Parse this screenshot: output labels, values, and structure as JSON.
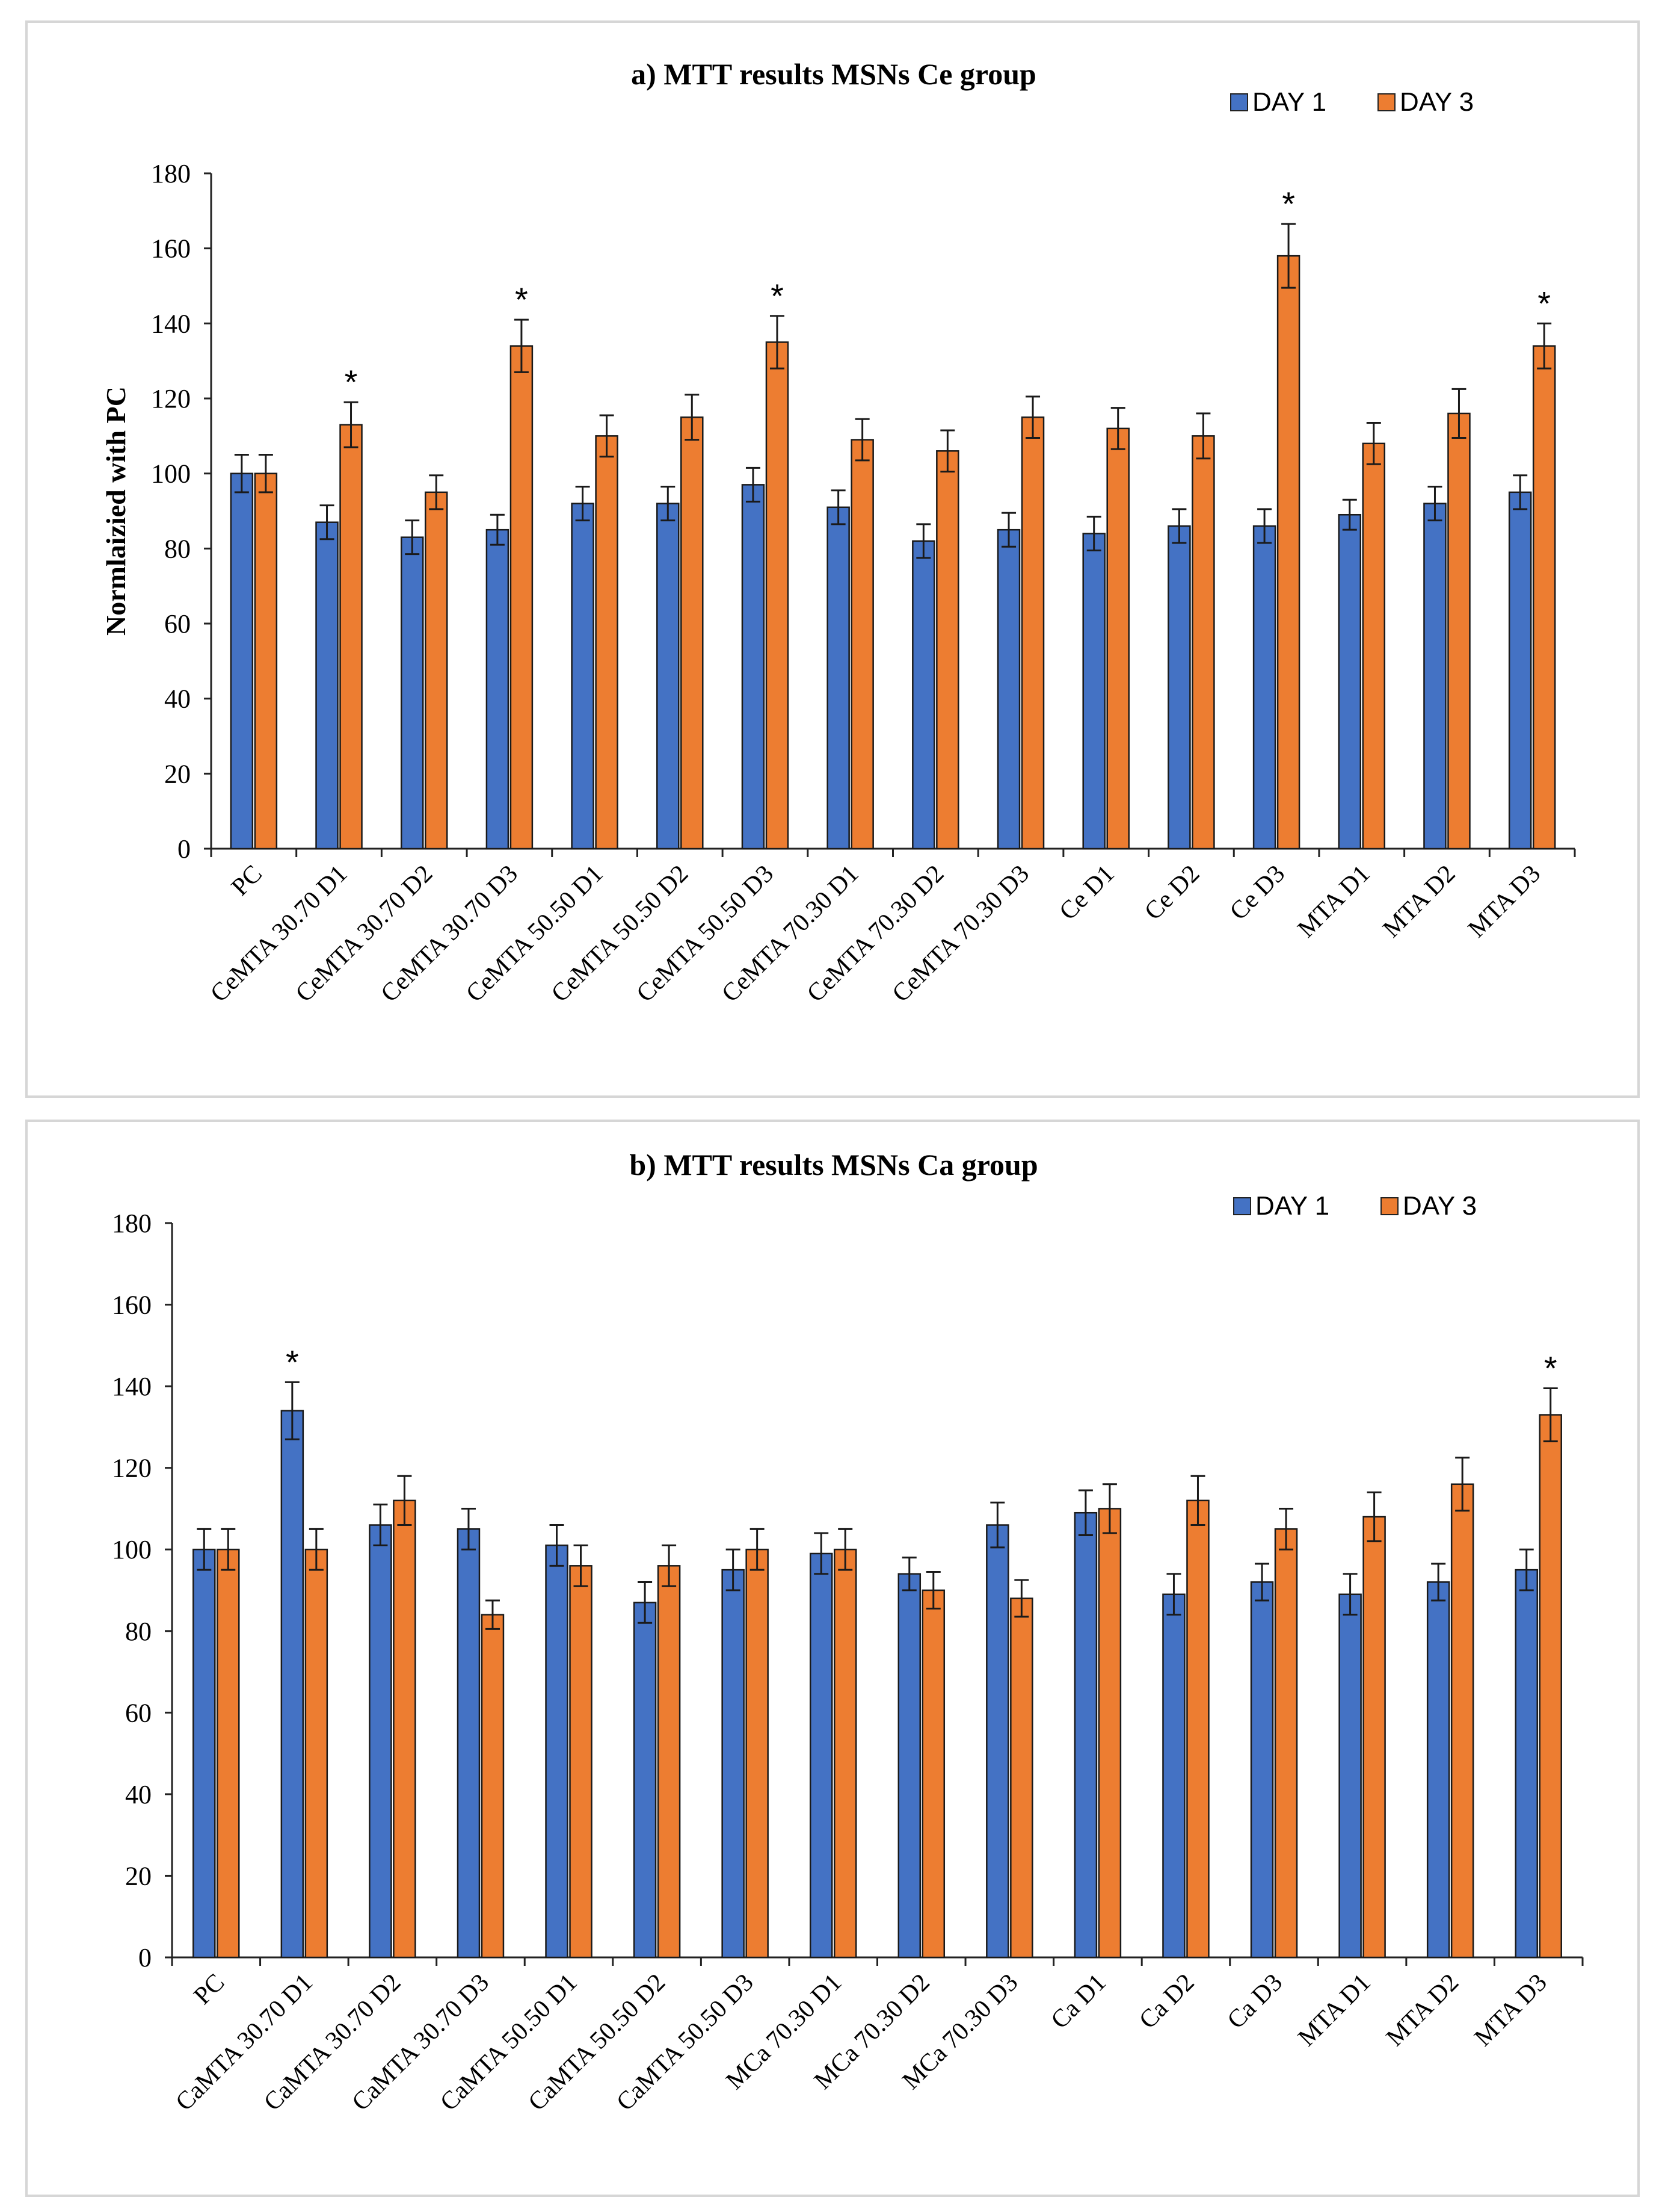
{
  "chart_data": [
    {
      "type": "bar",
      "title": "a) MTT results MSNs Ce group",
      "xlabel": "",
      "ylabel": "Normlaizied with PC",
      "ylim": [
        0,
        180
      ],
      "yticks": [
        "0",
        "20",
        "40",
        "60",
        "80",
        "100",
        "120",
        "140",
        "160",
        "180"
      ],
      "legend_position": "top-right",
      "categories": [
        "PC",
        "CeMTA 30.70 D1",
        "CeMTA 30.70 D2",
        "CeMTA 30.70 D3",
        "CeMTA 50.50 D1",
        "CeMTA 50.50 D2",
        "CeMTA 50.50 D3",
        "CeMTA 70.30 D1",
        "CeMTA 70.30 D2",
        "CeMTA 70.30 D3",
        "Ce D1",
        "Ce D2",
        "Ce D3",
        "MTA D1",
        "MTA D2",
        "MTA D3"
      ],
      "series": [
        {
          "name": "DAY 1",
          "color": "#4472C4",
          "values": [
            100,
            87,
            83,
            85,
            92,
            92,
            97,
            91,
            82,
            85,
            84,
            86,
            86,
            89,
            92,
            95
          ],
          "errors": [
            5,
            4.5,
            4.5,
            4,
            4.5,
            4.5,
            4.5,
            4.5,
            4.5,
            4.5,
            4.5,
            4.5,
            4.5,
            4,
            4.5,
            4.5
          ]
        },
        {
          "name": "DAY 3",
          "color": "#ED7D31",
          "values": [
            100,
            113,
            95,
            134,
            110,
            115,
            135,
            109,
            106,
            115,
            112,
            110,
            158,
            108,
            116,
            134
          ],
          "errors": [
            5,
            6,
            4.5,
            7,
            5.5,
            6,
            7,
            5.5,
            5.5,
            5.5,
            5.5,
            6,
            8.5,
            5.5,
            6.5,
            6
          ]
        }
      ],
      "annotations": [
        {
          "text": "*",
          "category": "CeMTA 30.70 D1",
          "series": "DAY 3"
        },
        {
          "text": "*",
          "category": "CeMTA 30.70 D3",
          "series": "DAY 3"
        },
        {
          "text": "*",
          "category": "CeMTA 50.50 D3",
          "series": "DAY 3"
        },
        {
          "text": "*",
          "category": "Ce D3",
          "series": "DAY 3"
        },
        {
          "text": "*",
          "category": "MTA D3",
          "series": "DAY 3"
        }
      ]
    },
    {
      "type": "bar",
      "title": "b) MTT results MSNs Ca group",
      "xlabel": "",
      "ylabel": "",
      "ylim": [
        0,
        180
      ],
      "yticks": [
        "0",
        "20",
        "40",
        "60",
        "80",
        "100",
        "120",
        "140",
        "160",
        "180"
      ],
      "legend_position": "top-right",
      "categories": [
        "PC",
        "CaMTA 30.70 D1",
        "CaMTA 30.70 D2",
        "CaMTA 30.70 D3",
        "CaMTA 50.50 D1",
        "CaMTA 50.50 D2",
        "CaMTA 50.50 D3",
        "MCa 70.30 D1",
        "MCa 70.30 D2",
        "MCa 70.30 D3",
        "Ca D1",
        "Ca D2",
        "Ca D3",
        "MTA D1",
        "MTA D2",
        "MTA D3"
      ],
      "series": [
        {
          "name": "DAY 1",
          "color": "#4472C4",
          "values": [
            100,
            134,
            106,
            105,
            101,
            87,
            95,
            99,
            94,
            106,
            109,
            89,
            92,
            89,
            92,
            95
          ],
          "errors": [
            5,
            7,
            5,
            5,
            5,
            5,
            5,
            5,
            4,
            5.5,
            5.5,
            5,
            4.5,
            5,
            4.5,
            5
          ]
        },
        {
          "name": "DAY 3",
          "color": "#ED7D31",
          "values": [
            100,
            100,
            112,
            84,
            96,
            96,
            100,
            100,
            90,
            88,
            110,
            112,
            105,
            108,
            116,
            133
          ],
          "errors": [
            5,
            5,
            6,
            3.5,
            5,
            5,
            5,
            5,
            4.5,
            4.5,
            6,
            6,
            5,
            6,
            6.5,
            6.5
          ]
        }
      ],
      "annotations": [
        {
          "text": "*",
          "category": "CaMTA 30.70 D1",
          "series": "DAY 1"
        },
        {
          "text": "*",
          "category": "MTA D3",
          "series": "DAY 3"
        }
      ]
    }
  ]
}
